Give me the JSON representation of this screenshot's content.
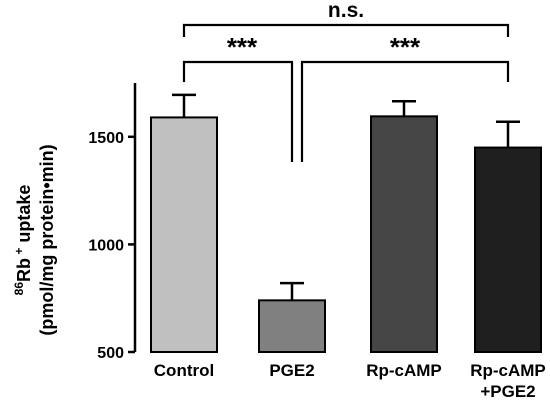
{
  "chart_data": {
    "type": "bar",
    "categories": [
      {
        "line1": "Control",
        "line2": ""
      },
      {
        "line1": "PGE2",
        "line2": ""
      },
      {
        "line1": "Rp-cAMP",
        "line2": ""
      },
      {
        "line1": "Rp-cAMP",
        "line2": "+PGE2"
      }
    ],
    "values": [
      1590,
      740,
      1595,
      1450
    ],
    "errors": [
      105,
      80,
      70,
      120
    ],
    "colors": [
      "#c0c0c0",
      "#808080",
      "#454545",
      "#1f1f1f"
    ],
    "ylabel": {
      "line1_sup": "86",
      "line1_main": "Rb",
      "line1_sup2": " +",
      "line1_rest": " uptake",
      "line2": "(pmol/mg protein•min)"
    },
    "ylim": [
      500,
      1750
    ],
    "yticks": [
      500,
      1000,
      1500
    ],
    "grid": false,
    "significance": [
      {
        "label": "n.s.",
        "from": 0,
        "to": 3,
        "level": "top"
      },
      {
        "label": "***",
        "from": 0,
        "to": 1,
        "level": "lower"
      },
      {
        "label": "***",
        "from": 1,
        "to": 3,
        "level": "lower"
      }
    ]
  }
}
